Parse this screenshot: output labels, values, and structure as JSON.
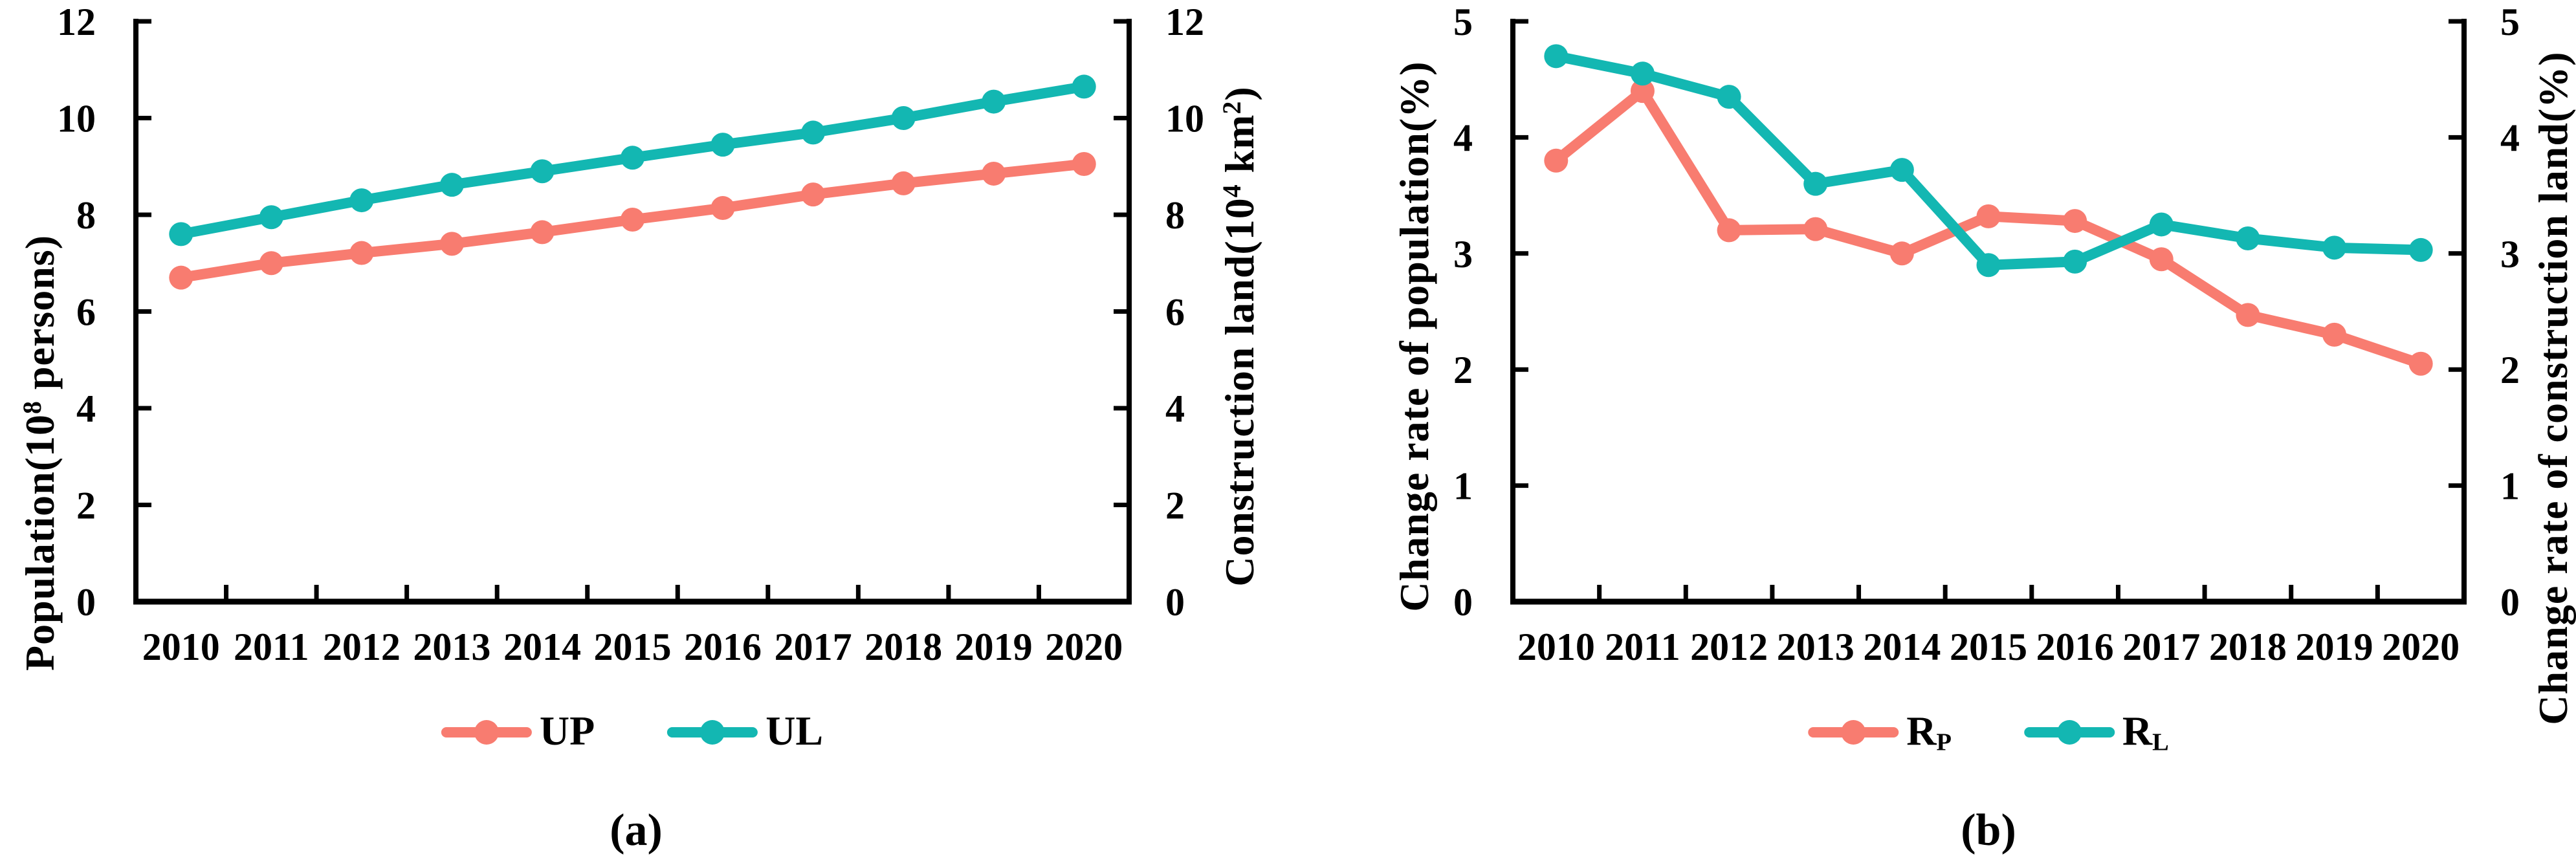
{
  "chart_data": [
    {
      "type": "line",
      "caption": "(a)",
      "categories": [
        "2010",
        "2011",
        "2012",
        "2013",
        "2014",
        "2015",
        "2016",
        "2017",
        "2018",
        "2019",
        "2020"
      ],
      "series": [
        {
          "name": "UP",
          "color": "#F87C70",
          "axis": "left",
          "values": [
            6.7,
            7.0,
            7.21,
            7.4,
            7.64,
            7.9,
            8.14,
            8.42,
            8.65,
            8.85,
            9.05
          ]
        },
        {
          "name": "UL",
          "color": "#13B7B2",
          "axis": "right",
          "values": [
            7.6,
            7.95,
            8.3,
            8.62,
            8.9,
            9.18,
            9.45,
            9.7,
            10.0,
            10.34,
            10.65
          ]
        }
      ],
      "left_axis": {
        "label": "Population(10⁸ persons)",
        "range": [
          0,
          12
        ],
        "ticks": [
          0,
          2,
          4,
          6,
          8,
          10,
          12
        ]
      },
      "right_axis": {
        "label": "Construction land(10⁴ km²)",
        "range": [
          0,
          12
        ],
        "ticks": [
          0,
          2,
          4,
          6,
          8,
          10,
          12
        ]
      },
      "legend_position": "bottom",
      "grid": false
    },
    {
      "type": "line",
      "caption": "(b)",
      "categories": [
        "2010",
        "2011",
        "2012",
        "2013",
        "2014",
        "2015",
        "2016",
        "2017",
        "2018",
        "2019",
        "2020"
      ],
      "series": [
        {
          "name": "RP",
          "color": "#F87C70",
          "axis": "left",
          "values": [
            3.8,
            4.4,
            3.2,
            3.21,
            3.0,
            3.32,
            3.28,
            2.95,
            2.47,
            2.3,
            2.05
          ]
        },
        {
          "name": "RL",
          "color": "#13B7B2",
          "axis": "right",
          "values": [
            4.7,
            4.55,
            4.35,
            3.6,
            3.72,
            2.9,
            2.93,
            3.25,
            3.13,
            3.05,
            3.03
          ]
        }
      ],
      "left_axis": {
        "label": "Change rate of population(%)",
        "range": [
          0,
          5
        ],
        "ticks": [
          0,
          1,
          2,
          3,
          4,
          5
        ]
      },
      "right_axis": {
        "label": "Change rate of construction land(%)",
        "range": [
          0,
          5
        ],
        "ticks": [
          0,
          1,
          2,
          3,
          4,
          5
        ]
      },
      "legend_position": "bottom",
      "grid": false
    }
  ],
  "panels": [
    {
      "caption": "(a)",
      "left_label": {
        "pre": "Population(10",
        "sup": "8",
        "mid": " persons)",
        "sup2": "",
        "post": ""
      },
      "right_label": {
        "pre": "Construction land(10",
        "sup": "4",
        "mid": " km",
        "sup2": "2",
        "post": ")"
      },
      "legend": [
        {
          "text": "UP",
          "sub": ""
        },
        {
          "text": "UL",
          "sub": ""
        }
      ]
    },
    {
      "caption": "(b)",
      "left_label": {
        "pre": "Change rate of population(%)",
        "sup": "",
        "mid": "",
        "sup2": "",
        "post": ""
      },
      "right_label": {
        "pre": "Change rate of construction land(%)",
        "sup": "",
        "mid": "",
        "sup2": "",
        "post": ""
      },
      "legend": [
        {
          "text": "R",
          "sub": "P"
        },
        {
          "text": "R",
          "sub": "L"
        }
      ]
    }
  ]
}
